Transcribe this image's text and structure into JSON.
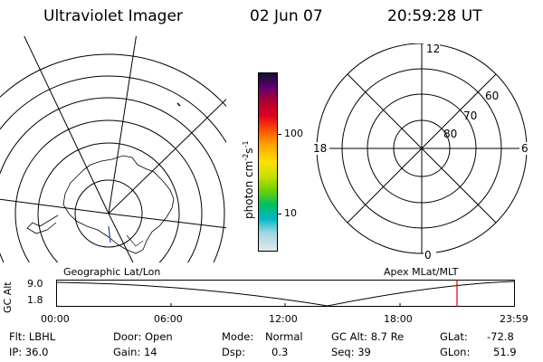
{
  "header": {
    "instrument": "Ultraviolet Imager",
    "date": "02 Jun 07",
    "time": "20:59:28 UT"
  },
  "colorbar": {
    "unit_label": "photon cm",
    "unit_sup1": "-2",
    "unit_mid": "s",
    "unit_sup2": "-1",
    "tick_100": "100",
    "tick_10": "10",
    "colors": [
      "#101030",
      "#600070",
      "#b00030",
      "#e00020",
      "#ff5000",
      "#ffa000",
      "#ffe000",
      "#c8e000",
      "#70d000",
      "#00c060",
      "#00b8c8",
      "#a0d8e0",
      "#e0e8ec"
    ]
  },
  "geo_map": {
    "label": "Geographic Lat/Lon"
  },
  "apex_plot": {
    "label": "Apex MLat/MLT",
    "mlt_top": "12",
    "mlt_left": "18",
    "mlt_right": "6",
    "mlt_bottom": "0",
    "lat_60": "60",
    "lat_70": "70",
    "lat_80": "80"
  },
  "altitude_plot": {
    "ylabel": "GC Alt",
    "ytick_top": "9.0",
    "ytick_bottom": "1.8",
    "xticks": [
      "00:00",
      "06:00",
      "12:00",
      "18:00",
      "23:59"
    ],
    "current_marker_time": "20:59:28"
  },
  "status": {
    "flt": "Flt: LBHL",
    "ip": "IP: 36.0",
    "door": "Door: Open",
    "gain": "Gain: 14",
    "mode_label": "Mode:",
    "mode_value": "Normal",
    "dsp_label": "Dsp:",
    "dsp_value": "0.3",
    "gc_alt": "GC Alt: 8.7 Re",
    "seq": "Seq: 39",
    "glat_label": "GLat:",
    "glat_value": "-72.8",
    "glon_label": "GLon:",
    "glon_value": "51.9"
  },
  "colors": {
    "marker": "#e00000",
    "line": "#000000",
    "background": "#ffffff"
  }
}
